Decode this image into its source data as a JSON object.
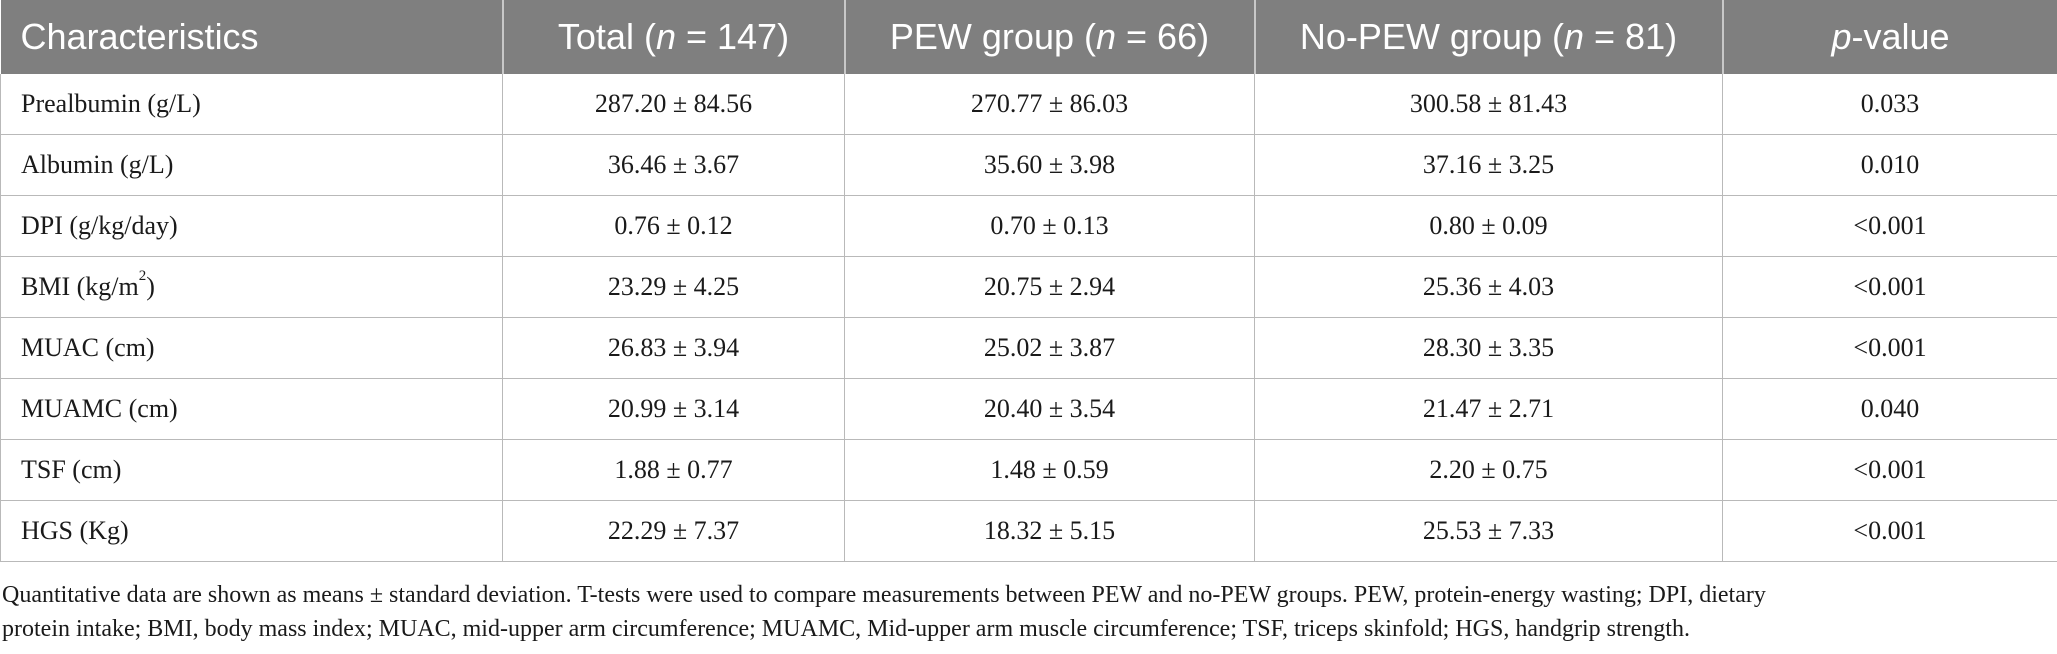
{
  "table": {
    "headers": [
      {
        "pre": "Characteristics",
        "italic": "",
        "post": ""
      },
      {
        "pre": "Total (",
        "italic": "n",
        "post": " = 147)"
      },
      {
        "pre": "PEW group (",
        "italic": "n",
        "post": " = 66)"
      },
      {
        "pre": "No-PEW group (",
        "italic": "n",
        "post": " = 81)"
      },
      {
        "pre": "",
        "italic": "p",
        "post": "-value"
      }
    ],
    "rows": [
      {
        "label": "Prealbumin (g/L)",
        "label_sup": "",
        "label_after": "",
        "total": "287.20 ± 84.56",
        "pew": "270.77 ± 86.03",
        "nopew": "300.58 ± 81.43",
        "p": "0.033"
      },
      {
        "label": "Albumin (g/L)",
        "label_sup": "",
        "label_after": "",
        "total": "36.46 ± 3.67",
        "pew": "35.60 ± 3.98",
        "nopew": "37.16 ± 3.25",
        "p": "0.010"
      },
      {
        "label": "DPI (g/kg/day)",
        "label_sup": "",
        "label_after": "",
        "total": "0.76 ± 0.12",
        "pew": "0.70 ± 0.13",
        "nopew": "0.80 ± 0.09",
        "p": "<0.001"
      },
      {
        "label": "BMI (kg/m",
        "label_sup": "2",
        "label_after": ")",
        "total": "23.29 ± 4.25",
        "pew": "20.75 ± 2.94",
        "nopew": "25.36 ± 4.03",
        "p": "<0.001"
      },
      {
        "label": "MUAC (cm)",
        "label_sup": "",
        "label_after": "",
        "total": "26.83 ± 3.94",
        "pew": "25.02 ± 3.87",
        "nopew": "28.30 ± 3.35",
        "p": "<0.001"
      },
      {
        "label": "MUAMC (cm)",
        "label_sup": "",
        "label_after": "",
        "total": "20.99 ± 3.14",
        "pew": "20.40 ± 3.54",
        "nopew": "21.47 ± 2.71",
        "p": "0.040"
      },
      {
        "label": "TSF (cm)",
        "label_sup": "",
        "label_after": "",
        "total": "1.88 ± 0.77",
        "pew": "1.48 ± 0.59",
        "nopew": "2.20 ± 0.75",
        "p": "<0.001"
      },
      {
        "label": "HGS (Kg)",
        "label_sup": "",
        "label_after": "",
        "total": "22.29 ± 7.37",
        "pew": "18.32 ± 5.15",
        "nopew": "25.53 ± 7.33",
        "p": "<0.001"
      }
    ]
  },
  "footnote": {
    "line1": "Quantitative data are shown as means ± standard deviation. T-tests were used to compare measurements between PEW and no-PEW groups. PEW, protein-energy wasting; DPI, dietary",
    "line2": "protein intake; BMI, body mass index; MUAC, mid-upper arm circumference; MUAMC, Mid-upper arm muscle circumference; TSF, triceps skinfold; HGS, handgrip strength."
  },
  "colors": {
    "header_bg": "#7f7f7f",
    "header_text": "#ffffff",
    "grid": "#b9b9b9",
    "text": "#1a1a1a"
  }
}
